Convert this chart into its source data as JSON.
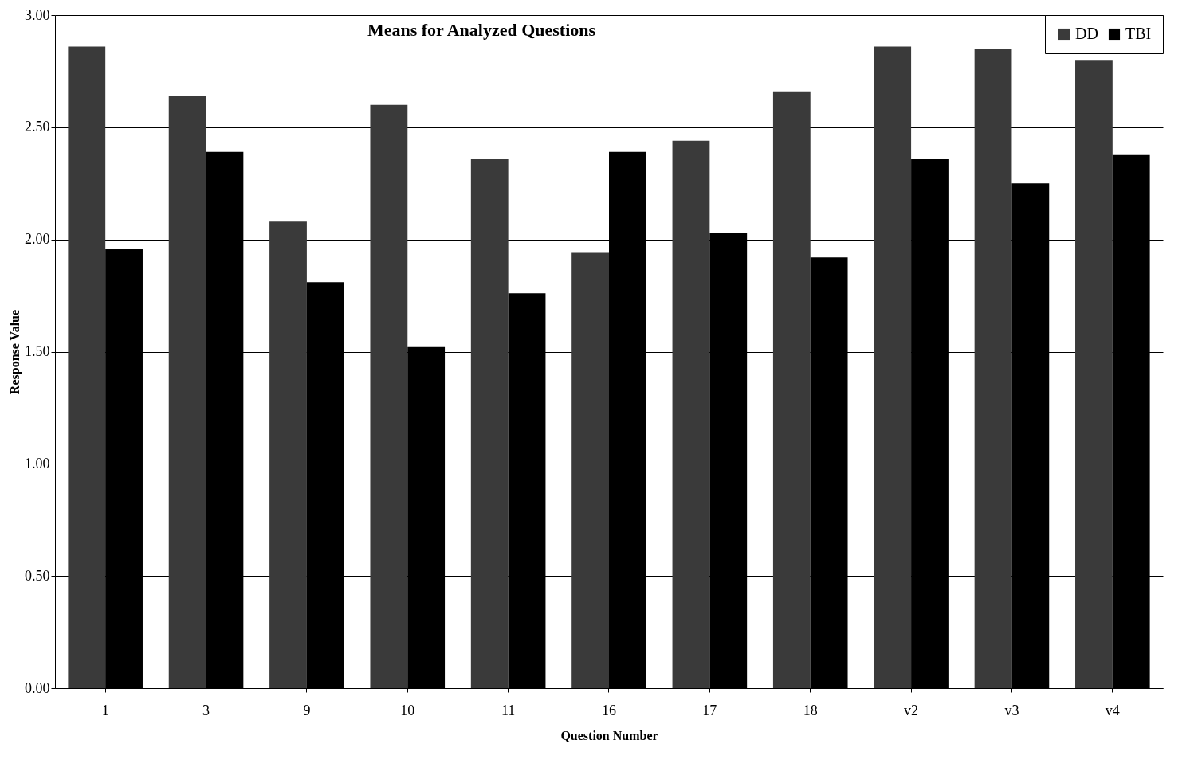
{
  "chart_data": {
    "type": "bar",
    "title": "Means for Analyzed Questions",
    "xlabel": "Question Number",
    "ylabel": "Response Value",
    "categories": [
      "1",
      "3",
      "9",
      "10",
      "11",
      "16",
      "17",
      "18",
      "v2",
      "v3",
      "v4"
    ],
    "series": [
      {
        "name": "DD",
        "color": "#3a3a3a",
        "values": [
          2.86,
          2.64,
          2.08,
          2.6,
          2.36,
          1.94,
          2.44,
          2.66,
          2.86,
          2.85,
          2.8
        ]
      },
      {
        "name": "TBI",
        "color": "#000000",
        "values": [
          1.96,
          2.39,
          1.81,
          1.52,
          1.76,
          2.39,
          2.03,
          1.92,
          2.36,
          2.25,
          2.38
        ]
      }
    ],
    "ylim": [
      0,
      3
    ],
    "yticks": [
      {
        "value": 0,
        "label": "0.00"
      },
      {
        "value": 0.5,
        "label": "0.50"
      },
      {
        "value": 1,
        "label": "1.00"
      },
      {
        "value": 1.5,
        "label": "1.50"
      },
      {
        "value": 2,
        "label": "2.00"
      },
      {
        "value": 2.5,
        "label": "2.50"
      },
      {
        "value": 3,
        "label": "3.00"
      }
    ],
    "grid": "y",
    "legend": "top right"
  }
}
